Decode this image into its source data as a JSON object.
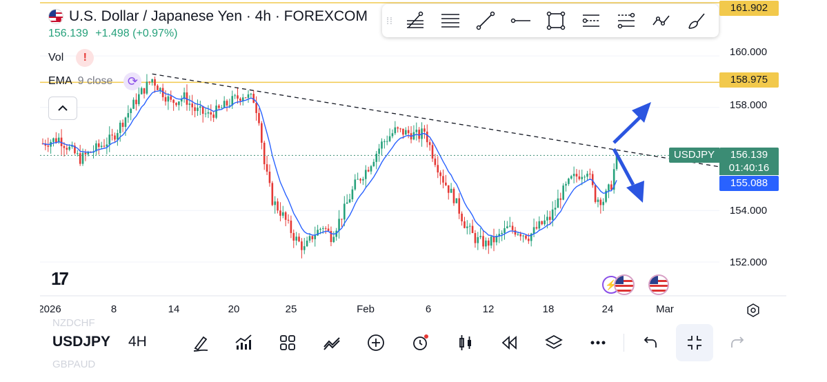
{
  "header": {
    "title": "U.S. Dollar / Japanese Yen · 4h · FOREXCOM",
    "price": "156.139",
    "change": "+1.498",
    "change_pct": "(+0.97%)"
  },
  "indicators": {
    "vol_label": "Vol",
    "vol_warning": "!",
    "ema_label": "EMA",
    "ema_params": "9 close"
  },
  "drawing_toolbar": {
    "tools": [
      "pitchfork-icon",
      "fib-retracement-icon",
      "trend-line-icon",
      "horizontal-ray-icon",
      "rectangle-icon",
      "long-position-icon",
      "short-position-icon",
      "path-icon",
      "brush-icon"
    ]
  },
  "price_axis": {
    "labels": [
      "160.000",
      "158.000",
      "154.000",
      "152.000"
    ],
    "tag_top": "161.902",
    "tag_line": "158.975",
    "tag_current": "156.139",
    "tag_countdown": "01:40:16",
    "tag_ema": "155.088",
    "symbol_tag": "USDJPY"
  },
  "time_axis": {
    "labels": [
      "2026",
      "8",
      "14",
      "20",
      "25",
      "Feb",
      "6",
      "12",
      "18",
      "24",
      "Mar"
    ]
  },
  "bottom_bar": {
    "symbol_above": "NZDCHF",
    "symbol": "USDJPY",
    "symbol_below": "GBPAUD",
    "timeframe": "4H",
    "icons": [
      "draw-icon",
      "indicators-icon",
      "layouts-icon",
      "compare-icon",
      "add-icon",
      "alert-icon",
      "candle-type-icon",
      "replay-icon",
      "layers-icon",
      "more-icon",
      "undo-icon",
      "fullscreen-exit-icon",
      "redo-icon"
    ]
  },
  "colors": {
    "up": "#26a17b",
    "down": "#e53935",
    "ema": "#2962ff",
    "level_line": "#f2c94c",
    "arrows": "#2b55e0"
  },
  "chart_data": {
    "type": "candlestick",
    "title": "U.S. Dollar / Japanese Yen · 4h · FOREXCOM",
    "ylim": [
      151.6,
      162.2
    ],
    "xlabels": [
      "2026",
      "8",
      "14",
      "20",
      "25",
      "Feb",
      "6",
      "12",
      "18",
      "24",
      "Mar"
    ],
    "waypoints_close": [
      [
        0,
        156.6
      ],
      [
        6,
        156.8
      ],
      [
        10,
        156.4
      ],
      [
        14,
        156.0
      ],
      [
        20,
        156.4
      ],
      [
        26,
        156.8
      ],
      [
        32,
        157.8
      ],
      [
        37,
        158.6
      ],
      [
        41,
        159.1
      ],
      [
        44,
        158.7
      ],
      [
        48,
        158.2
      ],
      [
        53,
        158.4
      ],
      [
        57,
        157.9
      ],
      [
        62,
        157.7
      ],
      [
        66,
        157.9
      ],
      [
        70,
        158.2
      ],
      [
        75,
        158.5
      ],
      [
        79,
        158.3
      ],
      [
        81,
        157.6
      ],
      [
        83,
        155.8
      ],
      [
        86,
        154.4
      ],
      [
        90,
        153.8
      ],
      [
        94,
        153.0
      ],
      [
        98,
        152.5
      ],
      [
        101,
        153.0
      ],
      [
        105,
        153.4
      ],
      [
        108,
        153.0
      ],
      [
        112,
        153.8
      ],
      [
        117,
        155.0
      ],
      [
        122,
        155.7
      ],
      [
        127,
        156.6
      ],
      [
        132,
        157.1
      ],
      [
        137,
        157.0
      ],
      [
        141,
        156.9
      ],
      [
        143,
        157.1
      ],
      [
        146,
        156.2
      ],
      [
        150,
        155.2
      ],
      [
        154,
        154.5
      ],
      [
        158,
        153.5
      ],
      [
        162,
        152.9
      ],
      [
        166,
        152.7
      ],
      [
        170,
        152.9
      ],
      [
        174,
        153.3
      ],
      [
        178,
        153.2
      ],
      [
        182,
        153.0
      ],
      [
        186,
        153.4
      ],
      [
        190,
        153.7
      ],
      [
        194,
        154.6
      ],
      [
        198,
        155.2
      ],
      [
        201,
        155.4
      ],
      [
        204,
        155.6
      ],
      [
        207,
        154.5
      ],
      [
        210,
        154.4
      ],
      [
        213,
        155.0
      ],
      [
        215,
        156.14
      ]
    ],
    "ema_period": 9,
    "levels": [
      {
        "price": 161.902,
        "label": "161.902"
      },
      {
        "price": 158.975,
        "label": "158.975"
      }
    ],
    "current_price": 156.139,
    "ema_value": 155.088,
    "trendline": [
      [
        41,
        159.3
      ],
      [
        215,
        156.35
      ]
    ]
  }
}
